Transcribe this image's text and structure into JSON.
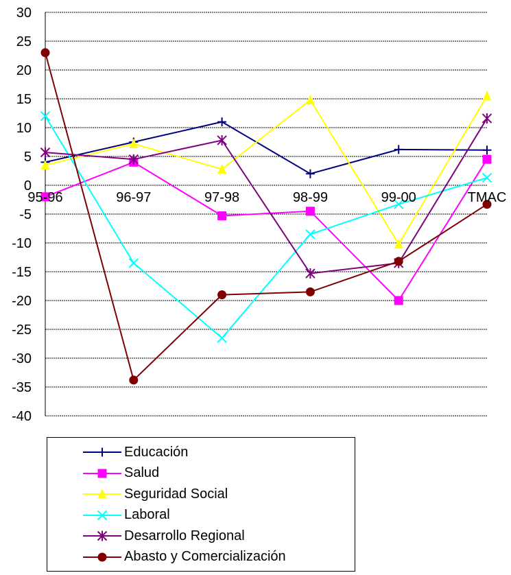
{
  "chart_data": {
    "type": "line",
    "categories": [
      "95-96",
      "96-97",
      "97-98",
      "98-99",
      "99-00",
      "TMAC"
    ],
    "y_ticks": [
      "30",
      "25",
      "20",
      "15",
      "10",
      "5",
      "0",
      "-5",
      "-10",
      "-15",
      "-20",
      "-25",
      "-30",
      "-35",
      "-40"
    ],
    "ylim": [
      -40,
      30
    ],
    "grid": true,
    "legend_position": "bottom",
    "series": [
      {
        "name": "Educación",
        "color": "#000080",
        "marker": "plus",
        "values": [
          4.0,
          7.5,
          11.0,
          2.0,
          6.2,
          6.1
        ]
      },
      {
        "name": "Salud",
        "color": "#FF00FF",
        "marker": "square",
        "values": [
          -2.0,
          4.0,
          -5.3,
          -4.5,
          -20.0,
          4.5
        ]
      },
      {
        "name": "Seguridad Social",
        "color": "#FFFF00",
        "marker": "triangle",
        "values": [
          3.5,
          7.2,
          2.8,
          14.8,
          -10.2,
          15.5
        ]
      },
      {
        "name": "Laboral",
        "color": "#00FFFF",
        "marker": "x",
        "values": [
          12.0,
          -13.5,
          -26.5,
          -8.5,
          -3.3,
          1.3
        ]
      },
      {
        "name": "Desarrollo Regional",
        "color": "#800080",
        "marker": "star",
        "values": [
          5.7,
          4.5,
          7.8,
          -15.3,
          -13.5,
          11.6
        ]
      },
      {
        "name": "Abasto y Comercialización",
        "color": "#800000",
        "marker": "circle",
        "values": [
          23.0,
          -33.8,
          -19.0,
          -18.5,
          -13.2,
          -3.3
        ]
      }
    ]
  }
}
